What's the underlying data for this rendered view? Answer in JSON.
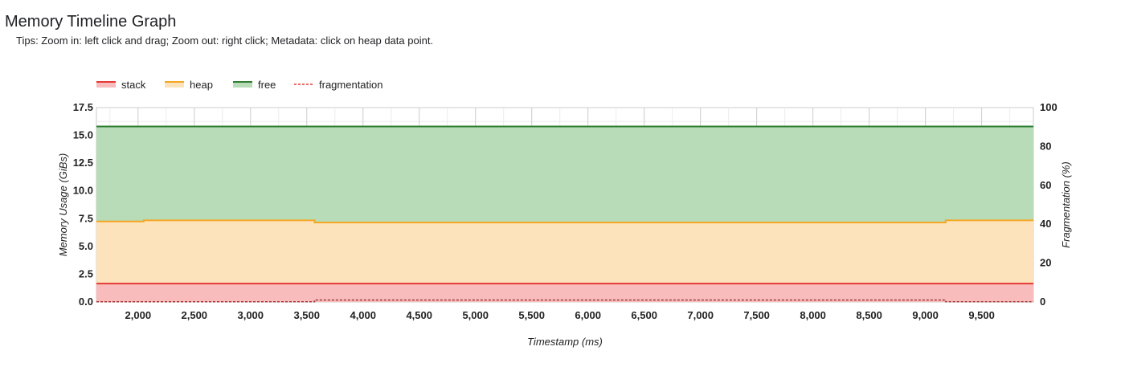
{
  "header": {
    "title": "Memory Timeline Graph",
    "tips": "Tips: Zoom in: left click and drag; Zoom out: right click; Metadata: click on heap data point."
  },
  "chart_data": {
    "type": "area",
    "xlabel": "Timestamp (ms)",
    "ylabel": "Memory Usage (GiBs)",
    "y2label": "Fragmentation (%)",
    "xlim": [
      1630,
      9960
    ],
    "ylim": [
      0,
      17.5
    ],
    "y2lim": [
      0,
      100
    ],
    "xticks": [
      2000,
      2500,
      3000,
      3500,
      4000,
      4500,
      5000,
      5500,
      6000,
      6500,
      7000,
      7500,
      8000,
      8500,
      9000,
      9500
    ],
    "xtick_labels": [
      "2,000",
      "2,500",
      "3,000",
      "3,500",
      "4,000",
      "4,500",
      "5,000",
      "5,500",
      "6,000",
      "6,500",
      "7,000",
      "7,500",
      "8,000",
      "8,500",
      "9,000",
      "9,500"
    ],
    "yticks": [
      0,
      2.5,
      5,
      7.5,
      10,
      12.5,
      15,
      17.5
    ],
    "ytick_labels": [
      "0.0",
      "2.5",
      "5.0",
      "7.5",
      "10.0",
      "12.5",
      "15.0",
      "17.5"
    ],
    "y2ticks": [
      0,
      20,
      40,
      60,
      80,
      100
    ],
    "y2tick_labels": [
      "0",
      "20",
      "40",
      "60",
      "80",
      "100"
    ],
    "grid": true,
    "stacked": true,
    "legend_position": "top-left",
    "series": [
      {
        "name": "stack",
        "color": "#e53935",
        "fill": "#f8bcbc",
        "x": [
          1630,
          9960
        ],
        "values": [
          1.65,
          1.65
        ]
      },
      {
        "name": "heap",
        "color": "#f5a623",
        "fill": "#fde3bb",
        "x": [
          1630,
          2050,
          2050,
          3570,
          3570,
          9180,
          9180,
          9960
        ],
        "values": [
          5.6,
          5.6,
          5.7,
          5.7,
          5.5,
          5.5,
          5.7,
          5.7
        ]
      },
      {
        "name": "free",
        "color": "#2e7d32",
        "fill": "#b7dcb7",
        "x": [
          1630,
          9960
        ],
        "values": [
          15.8,
          15.8
        ],
        "stacked_total": true
      },
      {
        "name": "fragmentation",
        "color": "#e53935",
        "dashed": true,
        "axis": "right",
        "x": [
          1630,
          3570,
          3570,
          9180,
          9180,
          9960
        ],
        "values": [
          0.1,
          0.1,
          1.0,
          1.0,
          0.1,
          0.1
        ]
      }
    ]
  }
}
